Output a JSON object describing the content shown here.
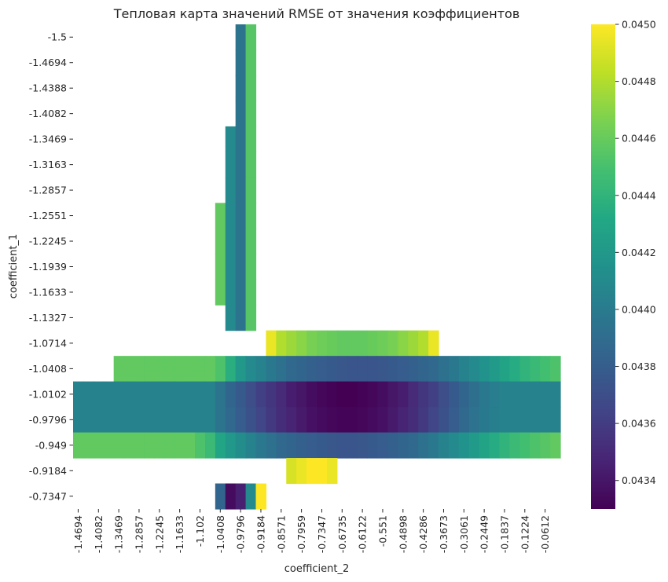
{
  "chart_data": {
    "type": "heatmap",
    "title": "Тепловая карта значений RMSE от значения коэффициентов",
    "xlabel": "coefficient_2",
    "ylabel": "coefficient_1",
    "colormap": "viridis",
    "colorbar": {
      "min": 0.0433,
      "max": 0.045,
      "ticks": [
        0.0434,
        0.0436,
        0.0438,
        0.044,
        0.0442,
        0.0444,
        0.0446,
        0.0448,
        0.045
      ],
      "tick_labels": [
        "0.0434",
        "0.0436",
        "0.0438",
        "0.0440",
        "0.0442",
        "0.0444",
        "0.0446",
        "0.0448",
        "0.0450"
      ]
    },
    "x_tick_labels": [
      "-1.4694",
      "-1.4082",
      "-1.3469",
      "-1.2857",
      "-1.2245",
      "-1.1633",
      "-1.102",
      "-1.0408",
      "-0.9796",
      "-0.9184",
      "-0.8571",
      "-0.7959",
      "-0.7347",
      "-0.6735",
      "-0.6122",
      "-0.551",
      "-0.4898",
      "-0.4286",
      "-0.3673",
      "-0.3061",
      "-0.2449",
      "-0.1837",
      "-0.1224",
      "-0.0612"
    ],
    "y_tick_labels": [
      "-1.5",
      "-1.4694",
      "-1.4388",
      "-1.4082",
      "-1.3469",
      "-1.3163",
      "-1.2857",
      "-1.2551",
      "-1.2245",
      "-1.1939",
      "-1.1633",
      "-1.1327",
      "-1.0714",
      "-1.0408",
      "-1.0102",
      "-0.9796",
      "-0.949",
      "-0.9184",
      "-0.7347"
    ],
    "n_columns": 48,
    "grid": false,
    "rows": [
      {
        "coefficient_1": -1.5,
        "segments": [
          {
            "start": 16,
            "values": [
              0.04395,
              0.04455
            ]
          }
        ]
      },
      {
        "coefficient_1": -1.4694,
        "segments": [
          {
            "start": 16,
            "values": [
              0.04395,
              0.04455
            ]
          }
        ]
      },
      {
        "coefficient_1": -1.4388,
        "segments": [
          {
            "start": 16,
            "values": [
              0.04395,
              0.04455
            ]
          }
        ]
      },
      {
        "coefficient_1": -1.4082,
        "segments": [
          {
            "start": 16,
            "values": [
              0.04395,
              0.04455
            ]
          }
        ]
      },
      {
        "coefficient_1": -1.3469,
        "segments": [
          {
            "start": 15,
            "values": [
              0.0441,
              0.04395,
              0.04455
            ]
          }
        ]
      },
      {
        "coefficient_1": -1.3163,
        "segments": [
          {
            "start": 15,
            "values": [
              0.0441,
              0.04395,
              0.04455
            ]
          }
        ]
      },
      {
        "coefficient_1": -1.2857,
        "segments": [
          {
            "start": 15,
            "values": [
              0.0441,
              0.04395,
              0.04455
            ]
          }
        ]
      },
      {
        "coefficient_1": -1.2551,
        "segments": [
          {
            "start": 14,
            "values": [
              0.04458,
              0.0441,
              0.04395,
              0.04455
            ]
          }
        ]
      },
      {
        "coefficient_1": -1.2245,
        "segments": [
          {
            "start": 14,
            "values": [
              0.04458,
              0.0441,
              0.04395,
              0.04455
            ]
          }
        ]
      },
      {
        "coefficient_1": -1.1939,
        "segments": [
          {
            "start": 14,
            "values": [
              0.04458,
              0.0441,
              0.04395,
              0.04455
            ]
          }
        ]
      },
      {
        "coefficient_1": -1.1633,
        "segments": [
          {
            "start": 14,
            "values": [
              0.04458,
              0.0441,
              0.04395,
              0.04455
            ]
          }
        ]
      },
      {
        "coefficient_1": -1.1327,
        "segments": [
          {
            "start": 15,
            "values": [
              0.0441,
              0.04395,
              0.04455
            ]
          }
        ]
      },
      {
        "coefficient_1": -1.0714,
        "segments": [
          {
            "start": 19,
            "values": [
              0.04495,
              0.0448,
              0.04475,
              0.0447,
              0.04465,
              0.04462,
              0.0446,
              0.04458,
              0.04458,
              0.04458,
              0.0446,
              0.04462,
              0.04465,
              0.0447,
              0.04475,
              0.0448,
              0.04495
            ]
          }
        ]
      },
      {
        "coefficient_1": -1.0408,
        "segments": [
          {
            "start": 4,
            "values": [
              0.04458,
              0.04458,
              0.04458,
              0.04458,
              0.04458,
              0.04458,
              0.04458,
              0.04458,
              0.04458,
              0.04458,
              0.04452,
              0.04436,
              0.0442,
              0.0441,
              0.04405,
              0.04398,
              0.04393,
              0.04388,
              0.04385,
              0.04382,
              0.0438,
              0.04378,
              0.04376,
              0.04375,
              0.04375,
              0.04375,
              0.04376,
              0.04378,
              0.0438,
              0.04382,
              0.04385,
              0.04388,
              0.04393,
              0.04398,
              0.04405,
              0.0441,
              0.04416,
              0.04422,
              0.04428,
              0.04434,
              0.0444,
              0.04444,
              0.04448,
              0.04452
            ]
          }
        ]
      },
      {
        "coefficient_1": -1.0102,
        "segments": [
          {
            "start": 0,
            "values": [
              0.04405,
              0.04405,
              0.04405,
              0.04405,
              0.04405,
              0.04405,
              0.04405,
              0.04405,
              0.04405,
              0.04405,
              0.04405,
              0.04405,
              0.04405,
              0.04405,
              0.04395,
              0.04385,
              0.04378,
              0.0437,
              0.04362,
              0.04356,
              0.0435,
              0.04344,
              0.0434,
              0.04336,
              0.04333,
              0.04331,
              0.0433,
              0.0433,
              0.04331,
              0.04333,
              0.04336,
              0.0434,
              0.04344,
              0.0435,
              0.04356,
              0.04362,
              0.0437,
              0.04378,
              0.04385,
              0.04392,
              0.04398,
              0.04402,
              0.04405,
              0.04405,
              0.04405,
              0.04405,
              0.04405,
              0.04405
            ]
          }
        ]
      },
      {
        "coefficient_1": -0.9796,
        "segments": [
          {
            "start": 0,
            "values": [
              0.04405,
              0.04405,
              0.04405,
              0.04405,
              0.04405,
              0.04405,
              0.04405,
              0.04405,
              0.04405,
              0.04405,
              0.04405,
              0.04405,
              0.04405,
              0.04405,
              0.04395,
              0.04388,
              0.0438,
              0.04372,
              0.04365,
              0.04358,
              0.04352,
              0.04347,
              0.04342,
              0.04338,
              0.04335,
              0.04333,
              0.04332,
              0.04332,
              0.04333,
              0.04335,
              0.04338,
              0.04342,
              0.04347,
              0.04352,
              0.04358,
              0.04365,
              0.04372,
              0.0438,
              0.04388,
              0.04394,
              0.04399,
              0.04403,
              0.04405,
              0.04405,
              0.04405,
              0.04405,
              0.04405,
              0.04405
            ]
          }
        ]
      },
      {
        "coefficient_1": -0.949,
        "segments": [
          {
            "start": 0,
            "values": [
              0.04458,
              0.04458,
              0.04458,
              0.04458,
              0.04458,
              0.04458,
              0.04458,
              0.04458,
              0.04458,
              0.04458,
              0.04458,
              0.04458,
              0.04452,
              0.04445,
              0.0443,
              0.0442,
              0.04412,
              0.04405,
              0.04398,
              0.04393,
              0.04388,
              0.04385,
              0.04382,
              0.0438,
              0.04378,
              0.04376,
              0.04375,
              0.04375,
              0.04376,
              0.04378,
              0.0438,
              0.04382,
              0.04385,
              0.04388,
              0.04393,
              0.04398,
              0.04405,
              0.0441,
              0.04416,
              0.04422,
              0.04428,
              0.04434,
              0.0444,
              0.04445,
              0.04448,
              0.04452,
              0.04455,
              0.04458
            ]
          }
        ]
      },
      {
        "coefficient_1": -0.9184,
        "segments": [
          {
            "start": 21,
            "values": [
              0.0449,
              0.04495,
              0.045,
              0.045,
              0.04495
            ]
          }
        ]
      },
      {
        "coefficient_1": -0.7347,
        "segments": [
          {
            "start": 14,
            "values": [
              0.04385,
              0.04335,
              0.04345,
              0.0441,
              0.045
            ]
          }
        ]
      }
    ]
  }
}
